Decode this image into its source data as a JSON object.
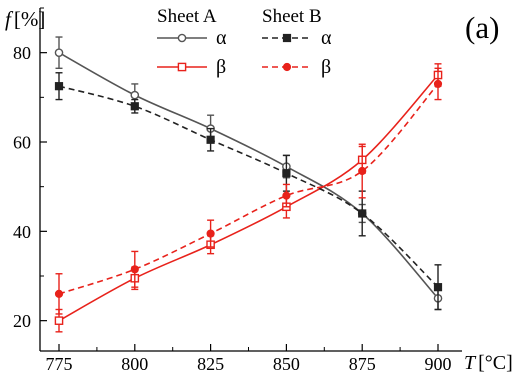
{
  "chart_data": {
    "type": "line",
    "panel_label": "(a)",
    "ylabel": {
      "symbol": "f",
      "unit": "[%]"
    },
    "xlabel": {
      "symbol": "T",
      "unit": "[°C]"
    },
    "xlim": [
      775,
      900
    ],
    "ylim": [
      15,
      90
    ],
    "x_ticks": [
      775,
      800,
      825,
      850,
      875,
      900
    ],
    "y_ticks": [
      20,
      40,
      60,
      80
    ],
    "legend": {
      "placement": "top",
      "groups": [
        {
          "title": "Sheet A",
          "entries": [
            {
              "series": 0,
              "label": "α"
            },
            {
              "series": 1,
              "label": "β"
            }
          ]
        },
        {
          "title": "Sheet B",
          "entries": [
            {
              "series": 2,
              "label": "α"
            },
            {
              "series": 3,
              "label": "β"
            }
          ]
        }
      ]
    },
    "x": [
      775,
      800,
      825,
      850,
      875,
      900
    ],
    "series": [
      {
        "sheet": "Sheet A",
        "phase": "α",
        "color": "#555555",
        "line": "solid",
        "marker": "open-circle",
        "values": [
          80.0,
          70.5,
          63.0,
          54.5,
          44.0,
          25.0
        ],
        "errors": [
          3.5,
          2.5,
          3.0,
          2.5,
          2.0,
          2.5
        ]
      },
      {
        "sheet": "Sheet A",
        "phase": "β",
        "color": "#e8221b",
        "line": "solid",
        "marker": "open-square",
        "values": [
          20.0,
          29.5,
          37.0,
          45.5,
          56.0,
          75.0
        ],
        "errors": [
          2.5,
          2.5,
          2.0,
          2.5,
          3.0,
          2.5
        ]
      },
      {
        "sheet": "Sheet B",
        "phase": "α",
        "color": "#222222",
        "line": "dashed",
        "marker": "filled-square",
        "values": [
          72.5,
          68.0,
          60.5,
          53.0,
          44.0,
          27.5
        ],
        "errors": [
          3.0,
          1.5,
          2.5,
          4.0,
          5.0,
          5.0
        ]
      },
      {
        "sheet": "Sheet B",
        "phase": "β",
        "color": "#e8221b",
        "line": "dashed",
        "marker": "filled-circle",
        "values": [
          26.0,
          31.5,
          39.5,
          48.0,
          53.5,
          73.0
        ],
        "errors": [
          4.5,
          4.0,
          3.0,
          2.5,
          6.0,
          3.5
        ]
      }
    ]
  }
}
